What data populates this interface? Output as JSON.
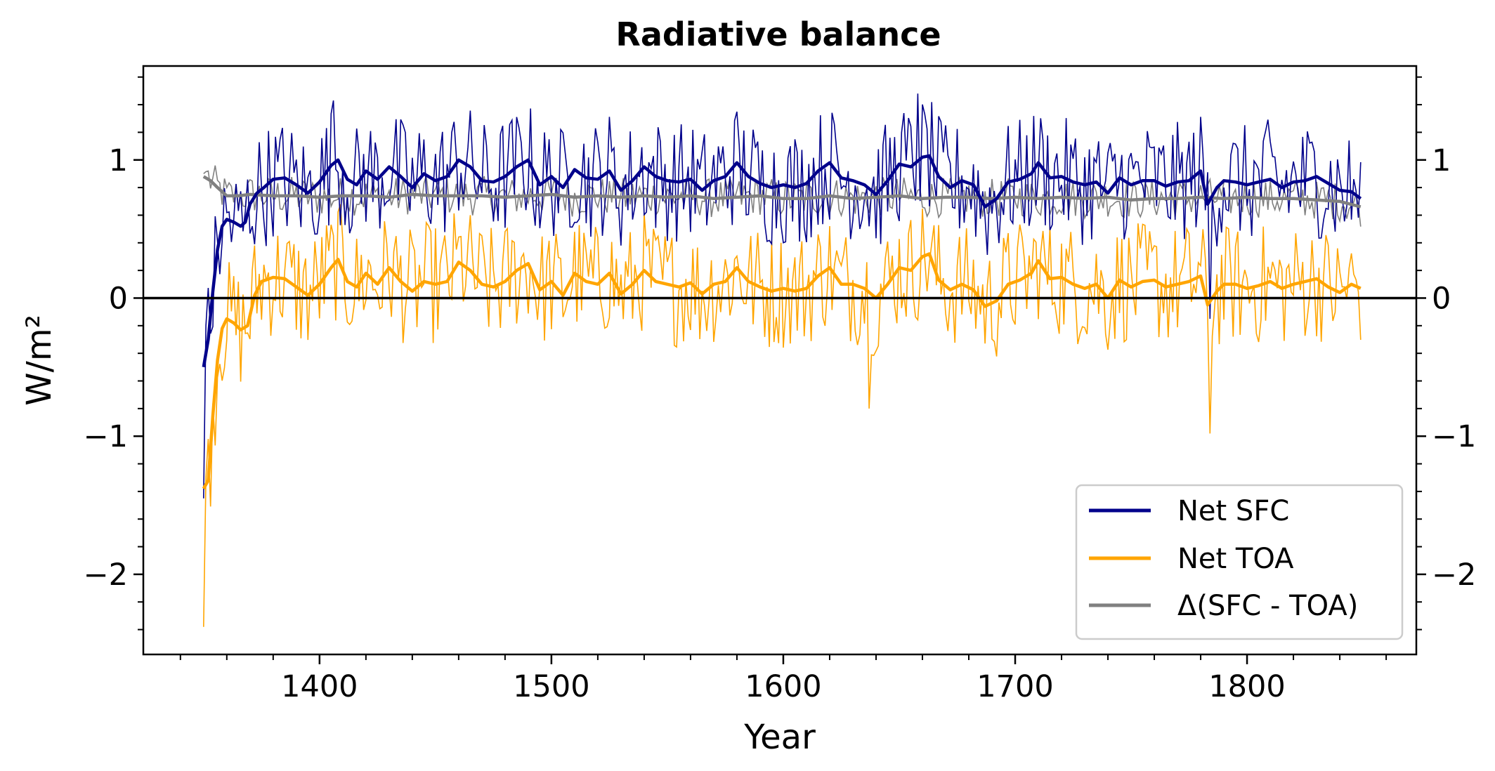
{
  "chart_data": {
    "type": "line",
    "title": "Radiative balance",
    "xlabel": "Year",
    "ylabel": "W/m²",
    "xlim": [
      1324,
      1873
    ],
    "ylim": [
      -2.58,
      1.68
    ],
    "xticks": [
      1400,
      1500,
      1600,
      1700,
      1800
    ],
    "yticks": [
      -2,
      -1,
      0,
      1
    ],
    "ytick_labels": [
      "−2",
      "−1",
      "0",
      "1"
    ],
    "grid": false,
    "right_axis_mirrored": true,
    "zero_line": 0,
    "legend": {
      "placement": "lower right"
    },
    "series": [
      {
        "name": "Net SFC",
        "color": "#00008b",
        "smoothed": [
          [
            1350,
            -0.5
          ],
          [
            1352,
            -0.3
          ],
          [
            1354,
            0.05
          ],
          [
            1356,
            0.35
          ],
          [
            1358,
            0.52
          ],
          [
            1360,
            0.57
          ],
          [
            1363,
            0.55
          ],
          [
            1366,
            0.52
          ],
          [
            1368,
            0.55
          ],
          [
            1370,
            0.68
          ],
          [
            1373,
            0.76
          ],
          [
            1376,
            0.8
          ],
          [
            1380,
            0.86
          ],
          [
            1385,
            0.87
          ],
          [
            1390,
            0.82
          ],
          [
            1395,
            0.76
          ],
          [
            1400,
            0.84
          ],
          [
            1405,
            0.96
          ],
          [
            1408,
            1.0
          ],
          [
            1412,
            0.86
          ],
          [
            1416,
            0.82
          ],
          [
            1420,
            0.92
          ],
          [
            1425,
            0.86
          ],
          [
            1430,
            0.95
          ],
          [
            1435,
            0.88
          ],
          [
            1440,
            0.8
          ],
          [
            1445,
            0.9
          ],
          [
            1450,
            0.85
          ],
          [
            1455,
            0.88
          ],
          [
            1460,
            1.0
          ],
          [
            1465,
            0.95
          ],
          [
            1470,
            0.85
          ],
          [
            1475,
            0.84
          ],
          [
            1480,
            0.88
          ],
          [
            1485,
            0.95
          ],
          [
            1490,
            1.0
          ],
          [
            1495,
            0.82
          ],
          [
            1500,
            0.88
          ],
          [
            1505,
            0.8
          ],
          [
            1510,
            0.93
          ],
          [
            1515,
            0.87
          ],
          [
            1520,
            0.86
          ],
          [
            1525,
            0.92
          ],
          [
            1530,
            0.78
          ],
          [
            1535,
            0.85
          ],
          [
            1540,
            0.95
          ],
          [
            1545,
            0.88
          ],
          [
            1550,
            0.85
          ],
          [
            1555,
            0.84
          ],
          [
            1560,
            0.86
          ],
          [
            1565,
            0.78
          ],
          [
            1570,
            0.85
          ],
          [
            1575,
            0.88
          ],
          [
            1580,
            0.98
          ],
          [
            1585,
            0.88
          ],
          [
            1590,
            0.83
          ],
          [
            1595,
            0.8
          ],
          [
            1600,
            0.82
          ],
          [
            1605,
            0.8
          ],
          [
            1610,
            0.83
          ],
          [
            1615,
            0.92
          ],
          [
            1620,
            0.98
          ],
          [
            1625,
            0.87
          ],
          [
            1630,
            0.85
          ],
          [
            1635,
            0.82
          ],
          [
            1640,
            0.75
          ],
          [
            1645,
            0.85
          ],
          [
            1650,
            0.97
          ],
          [
            1655,
            0.95
          ],
          [
            1660,
            1.02
          ],
          [
            1663,
            1.03
          ],
          [
            1667,
            0.88
          ],
          [
            1672,
            0.8
          ],
          [
            1677,
            0.85
          ],
          [
            1682,
            0.82
          ],
          [
            1687,
            0.66
          ],
          [
            1692,
            0.72
          ],
          [
            1697,
            0.84
          ],
          [
            1702,
            0.86
          ],
          [
            1707,
            0.9
          ],
          [
            1710,
            0.98
          ],
          [
            1715,
            0.87
          ],
          [
            1720,
            0.88
          ],
          [
            1725,
            0.84
          ],
          [
            1730,
            0.82
          ],
          [
            1735,
            0.84
          ],
          [
            1740,
            0.76
          ],
          [
            1745,
            0.87
          ],
          [
            1750,
            0.82
          ],
          [
            1755,
            0.85
          ],
          [
            1760,
            0.85
          ],
          [
            1765,
            0.81
          ],
          [
            1770,
            0.84
          ],
          [
            1775,
            0.85
          ],
          [
            1780,
            0.92
          ],
          [
            1783,
            0.68
          ],
          [
            1787,
            0.8
          ],
          [
            1790,
            0.85
          ],
          [
            1795,
            0.84
          ],
          [
            1800,
            0.82
          ],
          [
            1805,
            0.84
          ],
          [
            1810,
            0.86
          ],
          [
            1815,
            0.8
          ],
          [
            1820,
            0.84
          ],
          [
            1825,
            0.85
          ],
          [
            1830,
            0.88
          ],
          [
            1835,
            0.83
          ],
          [
            1840,
            0.78
          ],
          [
            1845,
            0.77
          ],
          [
            1849,
            0.72
          ]
        ]
      },
      {
        "name": "Net TOA",
        "color": "#ffa500",
        "smoothed": [
          [
            1350,
            -1.38
          ],
          [
            1352,
            -1.32
          ],
          [
            1354,
            -0.85
          ],
          [
            1356,
            -0.45
          ],
          [
            1358,
            -0.22
          ],
          [
            1360,
            -0.15
          ],
          [
            1363,
            -0.18
          ],
          [
            1366,
            -0.23
          ],
          [
            1369,
            -0.2
          ],
          [
            1372,
            0.02
          ],
          [
            1375,
            0.12
          ],
          [
            1380,
            0.15
          ],
          [
            1385,
            0.14
          ],
          [
            1390,
            0.08
          ],
          [
            1395,
            0.02
          ],
          [
            1400,
            0.1
          ],
          [
            1405,
            0.22
          ],
          [
            1408,
            0.28
          ],
          [
            1412,
            0.12
          ],
          [
            1416,
            0.08
          ],
          [
            1420,
            0.18
          ],
          [
            1425,
            0.1
          ],
          [
            1430,
            0.22
          ],
          [
            1435,
            0.12
          ],
          [
            1440,
            0.05
          ],
          [
            1445,
            0.12
          ],
          [
            1450,
            0.1
          ],
          [
            1455,
            0.12
          ],
          [
            1460,
            0.26
          ],
          [
            1465,
            0.2
          ],
          [
            1470,
            0.1
          ],
          [
            1475,
            0.08
          ],
          [
            1480,
            0.12
          ],
          [
            1485,
            0.2
          ],
          [
            1490,
            0.25
          ],
          [
            1495,
            0.06
          ],
          [
            1500,
            0.12
          ],
          [
            1505,
            0.02
          ],
          [
            1510,
            0.18
          ],
          [
            1515,
            0.12
          ],
          [
            1520,
            0.1
          ],
          [
            1525,
            0.18
          ],
          [
            1530,
            0.03
          ],
          [
            1535,
            0.1
          ],
          [
            1540,
            0.2
          ],
          [
            1545,
            0.12
          ],
          [
            1550,
            0.1
          ],
          [
            1555,
            0.08
          ],
          [
            1560,
            0.11
          ],
          [
            1565,
            0.03
          ],
          [
            1570,
            0.1
          ],
          [
            1575,
            0.12
          ],
          [
            1580,
            0.22
          ],
          [
            1585,
            0.12
          ],
          [
            1590,
            0.08
          ],
          [
            1595,
            0.05
          ],
          [
            1600,
            0.07
          ],
          [
            1605,
            0.05
          ],
          [
            1610,
            0.07
          ],
          [
            1615,
            0.16
          ],
          [
            1620,
            0.22
          ],
          [
            1625,
            0.1
          ],
          [
            1630,
            0.1
          ],
          [
            1635,
            0.07
          ],
          [
            1640,
            0.0
          ],
          [
            1645,
            0.1
          ],
          [
            1650,
            0.22
          ],
          [
            1655,
            0.2
          ],
          [
            1660,
            0.3
          ],
          [
            1663,
            0.32
          ],
          [
            1667,
            0.13
          ],
          [
            1672,
            0.06
          ],
          [
            1677,
            0.1
          ],
          [
            1682,
            0.06
          ],
          [
            1687,
            -0.06
          ],
          [
            1692,
            -0.02
          ],
          [
            1697,
            0.1
          ],
          [
            1702,
            0.13
          ],
          [
            1707,
            0.18
          ],
          [
            1710,
            0.27
          ],
          [
            1715,
            0.14
          ],
          [
            1720,
            0.15
          ],
          [
            1725,
            0.1
          ],
          [
            1730,
            0.07
          ],
          [
            1735,
            0.1
          ],
          [
            1740,
            0.0
          ],
          [
            1745,
            0.13
          ],
          [
            1750,
            0.08
          ],
          [
            1755,
            0.12
          ],
          [
            1760,
            0.13
          ],
          [
            1765,
            0.08
          ],
          [
            1770,
            0.1
          ],
          [
            1775,
            0.12
          ],
          [
            1780,
            0.16
          ],
          [
            1783,
            -0.05
          ],
          [
            1787,
            0.05
          ],
          [
            1790,
            0.1
          ],
          [
            1795,
            0.1
          ],
          [
            1800,
            0.07
          ],
          [
            1805,
            0.09
          ],
          [
            1810,
            0.12
          ],
          [
            1815,
            0.07
          ],
          [
            1820,
            0.1
          ],
          [
            1825,
            0.12
          ],
          [
            1830,
            0.14
          ],
          [
            1835,
            0.08
          ],
          [
            1840,
            0.04
          ],
          [
            1845,
            0.1
          ],
          [
            1849,
            0.07
          ]
        ]
      },
      {
        "name": "Δ(SFC - TOA)",
        "color": "#808080",
        "smoothed": [
          [
            1350,
            0.88
          ],
          [
            1353,
            0.85
          ],
          [
            1356,
            0.8
          ],
          [
            1360,
            0.74
          ],
          [
            1365,
            0.74
          ],
          [
            1370,
            0.75
          ],
          [
            1380,
            0.74
          ],
          [
            1390,
            0.74
          ],
          [
            1400,
            0.73
          ],
          [
            1410,
            0.74
          ],
          [
            1420,
            0.74
          ],
          [
            1430,
            0.73
          ],
          [
            1440,
            0.75
          ],
          [
            1450,
            0.74
          ],
          [
            1460,
            0.74
          ],
          [
            1470,
            0.74
          ],
          [
            1480,
            0.73
          ],
          [
            1490,
            0.74
          ],
          [
            1500,
            0.75
          ],
          [
            1510,
            0.73
          ],
          [
            1520,
            0.74
          ],
          [
            1530,
            0.73
          ],
          [
            1540,
            0.74
          ],
          [
            1550,
            0.73
          ],
          [
            1560,
            0.74
          ],
          [
            1570,
            0.72
          ],
          [
            1580,
            0.73
          ],
          [
            1590,
            0.74
          ],
          [
            1600,
            0.72
          ],
          [
            1610,
            0.72
          ],
          [
            1620,
            0.74
          ],
          [
            1630,
            0.72
          ],
          [
            1640,
            0.73
          ],
          [
            1650,
            0.74
          ],
          [
            1660,
            0.72
          ],
          [
            1670,
            0.73
          ],
          [
            1680,
            0.73
          ],
          [
            1690,
            0.72
          ],
          [
            1700,
            0.73
          ],
          [
            1710,
            0.72
          ],
          [
            1720,
            0.73
          ],
          [
            1730,
            0.72
          ],
          [
            1740,
            0.73
          ],
          [
            1750,
            0.71
          ],
          [
            1760,
            0.72
          ],
          [
            1770,
            0.72
          ],
          [
            1780,
            0.73
          ],
          [
            1790,
            0.72
          ],
          [
            1800,
            0.73
          ],
          [
            1810,
            0.72
          ],
          [
            1820,
            0.72
          ],
          [
            1830,
            0.71
          ],
          [
            1840,
            0.7
          ],
          [
            1849,
            0.66
          ]
        ]
      }
    ]
  }
}
